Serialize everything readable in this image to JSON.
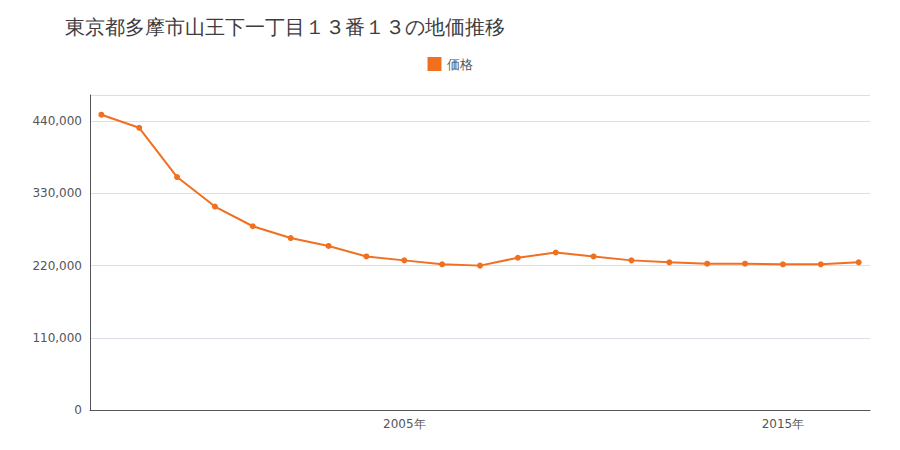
{
  "chart_data": {
    "type": "line",
    "title": "東京都多摩市山王下一丁目１３番１３の地価推移",
    "x": [
      1997,
      1998,
      1999,
      2000,
      2001,
      2002,
      2003,
      2004,
      2005,
      2006,
      2007,
      2008,
      2009,
      2010,
      2011,
      2012,
      2013,
      2014,
      2015,
      2016,
      2017
    ],
    "series": [
      {
        "name": "価格",
        "color": "#f07020",
        "marker": "circle",
        "values": [
          450000,
          430000,
          355000,
          310000,
          280000,
          262000,
          250000,
          234000,
          228000,
          222000,
          220000,
          232000,
          240000,
          234000,
          228000,
          225000,
          223000,
          223000,
          222000,
          222000,
          225000
        ]
      }
    ],
    "xlim": [
      1996.7,
      2017.3
    ],
    "xticks": [
      {
        "value": 2005,
        "label": "2005年"
      },
      {
        "value": 2015,
        "label": "2015年"
      }
    ],
    "ylim": [
      0,
      480000
    ],
    "yticks": [
      0,
      {
        "value": 110000,
        "label": "110,000"
      },
      {
        "value": 220000,
        "label": "220,000"
      },
      {
        "value": 330000,
        "label": "330,000"
      },
      {
        "value": 440000,
        "label": "440,000"
      }
    ],
    "grid": true,
    "legend": "top"
  }
}
